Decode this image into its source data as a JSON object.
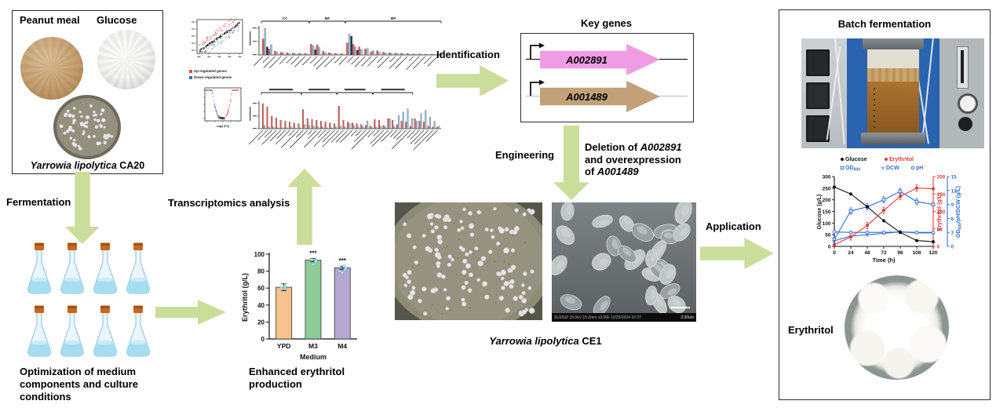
{
  "colors": {
    "arrow_green": "#cbdd9b",
    "gene_pink": "#ef9ce4",
    "gene_tan": "#c2a178",
    "bar_orange": "#f7c28e",
    "bar_green": "#8ecb97",
    "bar_purple": "#b4a7d1",
    "series_black": "#111111",
    "series_red": "#e23b34",
    "series_blue": "#2f6fd2",
    "scatter_red": "#e05243",
    "scatter_blue": "#3a6fc0"
  },
  "source_panel": {
    "peanut_label": "Peanut meal",
    "glucose_label": "Glucose",
    "strain_name": "Yarrowia lipolytica",
    "strain_code": " CA20"
  },
  "labels": {
    "fermentation": "Fermentation",
    "optimization": "Optimization of medium components and culture conditions",
    "transcriptomics": "Transcriptomics analysis",
    "identification": "Identification",
    "engineering": "Engineering",
    "application": "Application",
    "key_genes": "Key genes",
    "gene1": "A002891",
    "gene2": "A001489",
    "enhanced_caption": "Enhanced erythritol production",
    "ce1_strain": "Yarrowia lipolytica",
    "ce1_code": " CE1",
    "batch_title": "Batch fermentation",
    "erythritol_label": "Erythritol"
  },
  "deletion": {
    "l1a": "Deletion of ",
    "l1b": "A002891",
    "l2": "and overexpression",
    "l3a": "of ",
    "l3b": "A001489"
  },
  "sem_bar": {
    "info": "SU1510 15.0kV 15.2mm x3.00k 12/25/2024 10:37",
    "scale": "2.00um"
  },
  "transcriptomics_legend": {
    "red": "Up-regulated genes",
    "blue": "Down-regulated genes"
  },
  "chart_data": {
    "erythritol_bar": {
      "type": "bar",
      "categories": [
        "YPD",
        "M3",
        "M4"
      ],
      "values": [
        61,
        93,
        84
      ],
      "errors": [
        4,
        2,
        2
      ],
      "significance": [
        "",
        "***",
        "***"
      ],
      "bar_colors": [
        "#f7c28e",
        "#8ecb97",
        "#b4a7d1"
      ],
      "title": "",
      "xlabel": "Medium",
      "ylabel": "Erythritol (g/L)",
      "ylim": [
        0,
        100
      ],
      "yticks": [
        0,
        20,
        40,
        60,
        80,
        100
      ]
    },
    "time_course": {
      "type": "line",
      "x_labels": [
        "0",
        "24",
        "48",
        "72",
        "96",
        "108",
        "120"
      ],
      "xlabel": "Time (h)",
      "axes": {
        "left": {
          "label": "Glucose (g/L)",
          "range": [
            0,
            300
          ],
          "ticks": [
            0,
            50,
            100,
            150,
            200,
            250,
            300
          ],
          "color": "#111111"
        },
        "right1": {
          "label": "Erythritol (g/L)",
          "range": [
            0,
            200
          ],
          "ticks": [
            0,
            50,
            100,
            150,
            200
          ],
          "color": "#e23b34"
        },
        "right2": {
          "label": "OD600/pH/DCW (g/L)",
          "range": [
            0,
            15
          ],
          "ticks": [
            0,
            3,
            6,
            9,
            12,
            15
          ],
          "color": "#2f6fd2"
        }
      },
      "series": [
        {
          "name": "Glucose",
          "axis": "left",
          "color": "#111111",
          "marker": "filled-circle",
          "values": [
            255,
            225,
            170,
            110,
            60,
            25,
            20
          ]
        },
        {
          "name": "Erythritol",
          "axis": "right1",
          "color": "#e23b34",
          "marker": "filled-circle",
          "values": [
            5,
            27,
            60,
            103,
            143,
            167,
            165
          ]
        },
        {
          "name": "OD600",
          "axis": "right2",
          "color": "#2f6fd2",
          "marker": "open-square",
          "values": [
            1.5,
            7.6,
            8.5,
            10,
            11.8,
            9.6,
            9
          ]
        },
        {
          "name": "DCW",
          "axis": "right2",
          "color": "#2f6fd2",
          "marker": "star",
          "values": [
            1.2,
            2.2,
            2.5,
            2.8,
            3.1,
            2.9,
            2.9
          ]
        },
        {
          "name": "pH",
          "axis": "right2",
          "color": "#2f6fd2",
          "marker": "open-circle",
          "values": [
            3.1,
            3,
            3,
            3,
            3.1,
            3,
            3
          ]
        }
      ],
      "legend_rows": [
        [
          "Glucose",
          "Erythritol"
        ],
        [
          "OD600",
          "DCW",
          "pH"
        ]
      ]
    },
    "go_bars": {
      "type": "bar",
      "groups": [
        {
          "label": "CC",
          "from": 0,
          "to": 7
        },
        {
          "label": "MF",
          "from": 8,
          "to": 13
        },
        {
          "label": "BP",
          "from": 14,
          "to": 29
        }
      ],
      "series": [
        {
          "name": "red",
          "color": "#e26158",
          "values": [
            60,
            22,
            14,
            10,
            8,
            7,
            6,
            5,
            40,
            38,
            14,
            8,
            6,
            5,
            45,
            40,
            30,
            22,
            12,
            16,
            10,
            8,
            7,
            6,
            5,
            4,
            4,
            3,
            3,
            2
          ]
        },
        {
          "name": "blue",
          "color": "#9dc3e8",
          "values": [
            100,
            38,
            10,
            8,
            6,
            5,
            4,
            4,
            34,
            28,
            8,
            5,
            4,
            3,
            78,
            30,
            20,
            24,
            16,
            10,
            8,
            6,
            5,
            4,
            3,
            3,
            2,
            2,
            2,
            2
          ]
        },
        {
          "name": "dark",
          "color": "#27364f",
          "values": [
            30,
            0,
            0,
            0,
            0,
            0,
            0,
            0,
            20,
            0,
            0,
            0,
            0,
            0,
            70,
            18,
            0,
            0,
            0,
            0,
            0,
            0,
            0,
            0,
            0,
            0,
            0,
            0,
            0,
            0
          ]
        }
      ]
    },
    "kegg_bars": {
      "type": "bar",
      "groups": [
        {
          "label": "",
          "from": 0,
          "to": 8
        },
        {
          "label": "",
          "from": 9,
          "to": 16
        },
        {
          "label": "",
          "from": 17,
          "to": 24
        },
        {
          "label": "",
          "from": 25,
          "to": 33
        }
      ],
      "series": [
        {
          "name": "red",
          "color": "#e26158",
          "values": [
            30,
            26,
            15,
            13,
            10,
            9,
            8,
            7,
            6,
            23,
            12,
            11,
            10,
            9,
            8,
            7,
            6,
            27,
            10,
            8,
            7,
            6,
            5,
            4,
            3,
            11,
            10,
            4,
            12,
            10,
            5,
            9,
            8,
            3,
            12,
            9,
            8,
            3,
            2,
            2
          ]
        },
        {
          "name": "blue",
          "color": "#9dc3e8",
          "values": [
            4,
            2,
            2,
            1,
            1,
            1,
            2,
            1,
            1,
            5,
            4,
            3,
            2,
            2,
            1,
            1,
            2,
            3,
            2,
            6,
            4,
            2,
            2,
            9,
            2,
            2,
            3,
            2,
            12,
            3,
            16,
            20,
            24,
            12,
            9,
            18,
            22,
            14,
            9,
            3
          ]
        }
      ]
    },
    "scatter": {
      "type": "scatter",
      "point_colors": {
        "center": "#1a1a1a",
        "up": "#e05243",
        "down": "#3a6fc0"
      }
    },
    "volcano": {
      "type": "scatter",
      "xlabel": "Log2 (FC)",
      "point_colors": {
        "left": "#3a6fc0",
        "right": "#e05243",
        "center": "#1a1a1a"
      }
    }
  }
}
